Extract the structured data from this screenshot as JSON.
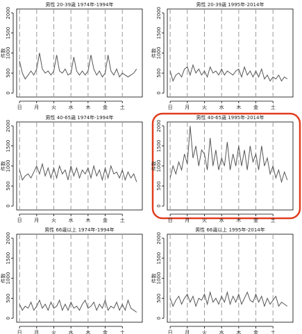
{
  "chart_data": [
    {
      "type": "line",
      "title": "男性 20-39歳 1974年-1994年",
      "y_label": "件数",
      "color": "#555555",
      "x": [
        0,
        4,
        8,
        12,
        16,
        20,
        24,
        28,
        32,
        36,
        40,
        44,
        48,
        52,
        56,
        60,
        64,
        68,
        72,
        76,
        80,
        84,
        88,
        92,
        96,
        100,
        104,
        108,
        112,
        116,
        120,
        124,
        128,
        132,
        136,
        140,
        144,
        148,
        152,
        156,
        160,
        164
      ],
      "values": [
        800,
        500,
        350,
        450,
        550,
        450,
        600,
        1000,
        600,
        500,
        550,
        450,
        550,
        950,
        550,
        500,
        600,
        450,
        500,
        900,
        550,
        450,
        550,
        450,
        550,
        950,
        600,
        450,
        550,
        400,
        500,
        950,
        550,
        450,
        600,
        400,
        500,
        450,
        400,
        450,
        500,
        600
      ],
      "xlim": [
        -4,
        172
      ],
      "ylim": [
        -100,
        2100
      ],
      "yticks": [
        0,
        500,
        1000,
        1500,
        2000
      ],
      "xticks": [
        {
          "value": 0,
          "label": "日"
        },
        {
          "value": 24,
          "label": "月"
        },
        {
          "value": 48,
          "label": "火"
        },
        {
          "value": 72,
          "label": "水"
        },
        {
          "value": 96,
          "label": "木"
        },
        {
          "value": 120,
          "label": "金"
        },
        {
          "value": 144,
          "label": "土"
        }
      ],
      "grid": "x",
      "highlight": false
    },
    {
      "type": "line",
      "title": "男性 20-39歳 1995年-2014年",
      "y_label": "件数",
      "color": "#555555",
      "x": [
        0,
        4,
        8,
        12,
        16,
        20,
        24,
        28,
        32,
        36,
        40,
        44,
        48,
        52,
        56,
        60,
        64,
        68,
        72,
        76,
        80,
        84,
        88,
        92,
        96,
        100,
        104,
        108,
        112,
        116,
        120,
        124,
        128,
        132,
        136,
        140,
        144,
        148,
        152,
        156,
        160,
        164
      ],
      "values": [
        550,
        300,
        450,
        500,
        400,
        600,
        650,
        450,
        700,
        500,
        600,
        450,
        550,
        400,
        650,
        500,
        550,
        450,
        600,
        450,
        550,
        500,
        450,
        550,
        600,
        400,
        650,
        450,
        550,
        400,
        550,
        400,
        600,
        350,
        450,
        300,
        400,
        350,
        450,
        300,
        400,
        350
      ],
      "xlim": [
        -4,
        172
      ],
      "ylim": [
        -100,
        2100
      ],
      "yticks": [
        0,
        500,
        1000,
        1500,
        2000
      ],
      "xticks": [
        {
          "value": 0,
          "label": "日"
        },
        {
          "value": 24,
          "label": "月"
        },
        {
          "value": 48,
          "label": "火"
        },
        {
          "value": 72,
          "label": "水"
        },
        {
          "value": 96,
          "label": "木"
        },
        {
          "value": 120,
          "label": "金"
        },
        {
          "value": 144,
          "label": "土"
        }
      ],
      "grid": "x",
      "highlight": false
    },
    {
      "type": "line",
      "title": "男性 40-65歳 1974年-1994年",
      "y_label": "件数",
      "color": "#555555",
      "x": [
        0,
        4,
        8,
        12,
        16,
        20,
        24,
        28,
        32,
        36,
        40,
        44,
        48,
        52,
        56,
        60,
        64,
        68,
        72,
        76,
        80,
        84,
        88,
        92,
        96,
        100,
        104,
        108,
        112,
        116,
        120,
        124,
        128,
        132,
        136,
        140,
        144,
        148,
        152,
        156,
        160,
        164
      ],
      "values": [
        900,
        650,
        750,
        800,
        700,
        850,
        1000,
        800,
        1050,
        750,
        950,
        700,
        950,
        700,
        1000,
        800,
        900,
        650,
        1000,
        750,
        950,
        700,
        900,
        800,
        950,
        700,
        1000,
        750,
        900,
        650,
        950,
        700,
        1000,
        800,
        850,
        700,
        900,
        650,
        850,
        700,
        800,
        600
      ],
      "xlim": [
        -4,
        172
      ],
      "ylim": [
        -100,
        2100
      ],
      "yticks": [
        0,
        500,
        1000,
        1500,
        2000
      ],
      "xticks": [
        {
          "value": 0,
          "label": "日"
        },
        {
          "value": 24,
          "label": "月"
        },
        {
          "value": 48,
          "label": "火"
        },
        {
          "value": 72,
          "label": "水"
        },
        {
          "value": 96,
          "label": "木"
        },
        {
          "value": 120,
          "label": "金"
        },
        {
          "value": 144,
          "label": "土"
        }
      ],
      "grid": "x",
      "highlight": false
    },
    {
      "type": "line",
      "title": "男性 40-65歳 1995年-2014年",
      "y_label": "件数",
      "color": "#555555",
      "x": [
        0,
        4,
        8,
        12,
        16,
        20,
        24,
        28,
        32,
        36,
        40,
        44,
        48,
        52,
        56,
        60,
        64,
        68,
        72,
        76,
        80,
        84,
        88,
        92,
        96,
        100,
        104,
        108,
        112,
        116,
        120,
        124,
        128,
        132,
        136,
        140,
        144,
        148,
        152,
        156,
        160,
        164
      ],
      "values": [
        700,
        1000,
        800,
        1100,
        900,
        1300,
        1050,
        2000,
        1200,
        1500,
        1000,
        1400,
        1300,
        900,
        1700,
        1000,
        1400,
        900,
        1200,
        1000,
        1600,
        900,
        1300,
        1000,
        1500,
        1000,
        1400,
        900,
        1500,
        1100,
        1300,
        900,
        1500,
        1000,
        1200,
        800,
        1000,
        700,
        900,
        600,
        850,
        650
      ],
      "xlim": [
        -4,
        172
      ],
      "ylim": [
        -100,
        2100
      ],
      "yticks": [
        0,
        500,
        1000,
        1500,
        2000
      ],
      "xticks": [
        {
          "value": 0,
          "label": "日"
        },
        {
          "value": 24,
          "label": "月"
        },
        {
          "value": 48,
          "label": "火"
        },
        {
          "value": 72,
          "label": "水"
        },
        {
          "value": 96,
          "label": "木"
        },
        {
          "value": 120,
          "label": "金"
        },
        {
          "value": 144,
          "label": "土"
        }
      ],
      "grid": "x",
      "highlight": true
    },
    {
      "type": "line",
      "title": "男性 66歳以上 1974年-1994年",
      "y_label": "件数",
      "color": "#555555",
      "x": [
        0,
        4,
        8,
        12,
        16,
        20,
        24,
        28,
        32,
        36,
        40,
        44,
        48,
        52,
        56,
        60,
        64,
        68,
        72,
        76,
        80,
        84,
        88,
        92,
        96,
        100,
        104,
        108,
        112,
        116,
        120,
        124,
        128,
        132,
        136,
        140,
        144,
        148,
        152,
        156,
        160,
        164
      ],
      "values": [
        350,
        200,
        300,
        250,
        400,
        200,
        300,
        450,
        250,
        350,
        200,
        400,
        250,
        300,
        450,
        200,
        350,
        200,
        400,
        250,
        300,
        200,
        350,
        450,
        250,
        300,
        400,
        200,
        350,
        250,
        450,
        200,
        300,
        250,
        400,
        200,
        350,
        200,
        450,
        250,
        200,
        150
      ],
      "xlim": [
        -4,
        172
      ],
      "ylim": [
        -100,
        2100
      ],
      "yticks": [
        0,
        500,
        1000,
        1500,
        2000
      ],
      "xticks": [
        {
          "value": 0,
          "label": "日"
        },
        {
          "value": 24,
          "label": "月"
        },
        {
          "value": 48,
          "label": "火"
        },
        {
          "value": 72,
          "label": "水"
        },
        {
          "value": 96,
          "label": "木"
        },
        {
          "value": 120,
          "label": "金"
        },
        {
          "value": 144,
          "label": "土"
        }
      ],
      "grid": "x",
      "highlight": false
    },
    {
      "type": "line",
      "title": "男性 66歳以上 1995年-2014年",
      "y_label": "件数",
      "color": "#555555",
      "x": [
        0,
        4,
        8,
        12,
        16,
        20,
        24,
        28,
        32,
        36,
        40,
        44,
        48,
        52,
        56,
        60,
        64,
        68,
        72,
        76,
        80,
        84,
        88,
        92,
        96,
        100,
        104,
        108,
        112,
        116,
        120,
        124,
        128,
        132,
        136,
        140,
        144,
        148,
        152,
        156,
        160,
        164
      ],
      "values": [
        500,
        300,
        450,
        550,
        350,
        500,
        600,
        400,
        550,
        300,
        500,
        450,
        600,
        350,
        650,
        400,
        500,
        350,
        550,
        400,
        650,
        350,
        550,
        400,
        600,
        350,
        500,
        650,
        450,
        400,
        600,
        400,
        550,
        300,
        500,
        350,
        450,
        550,
        300,
        400,
        350,
        300
      ],
      "xlim": [
        -4,
        172
      ],
      "ylim": [
        -100,
        2100
      ],
      "yticks": [
        0,
        500,
        1000,
        1500,
        2000
      ],
      "xticks": [
        {
          "value": 0,
          "label": "日"
        },
        {
          "value": 24,
          "label": "月"
        },
        {
          "value": 48,
          "label": "火"
        },
        {
          "value": 72,
          "label": "水"
        },
        {
          "value": 96,
          "label": "木"
        },
        {
          "value": 120,
          "label": "金"
        },
        {
          "value": 144,
          "label": "土"
        }
      ],
      "grid": "x",
      "highlight": false
    }
  ]
}
